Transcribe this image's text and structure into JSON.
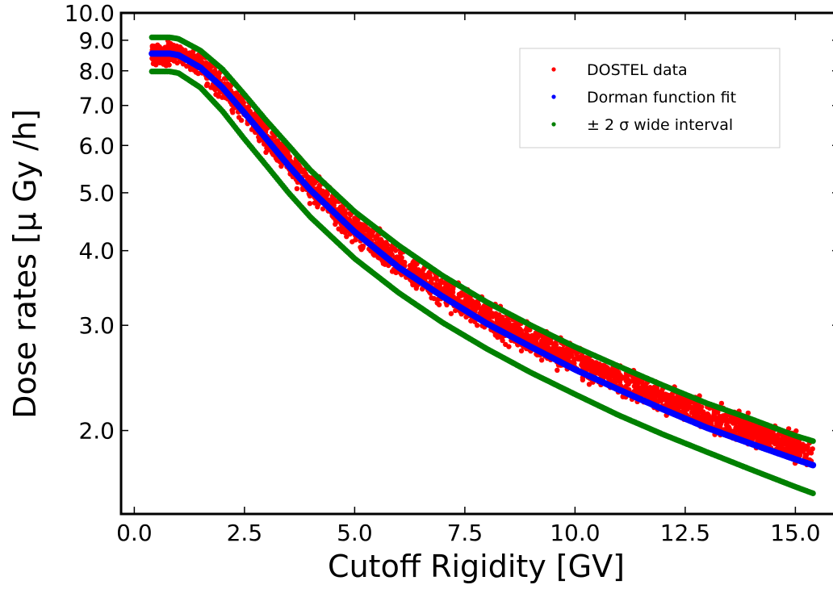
{
  "chart_data": {
    "type": "scatter",
    "xlabel": "Cutoff Rigidity [GV]",
    "ylabel": "Dose rates [μ Gy /h]",
    "xlim": [
      -0.3,
      16.0
    ],
    "ylim": [
      1.45,
      10.0
    ],
    "yscale": "log",
    "grid": false,
    "legend_position": "top-right",
    "x_ticks": [
      0.0,
      2.5,
      5.0,
      7.5,
      10.0,
      12.5,
      15.0
    ],
    "x_tick_labels": [
      "0.0",
      "2.5",
      "5.0",
      "7.5",
      "10.0",
      "12.5",
      "15.0"
    ],
    "y_ticks": [
      2.0,
      3.0,
      4.0,
      5.0,
      6.0,
      7.0,
      8.0,
      9.0,
      10.0
    ],
    "y_tick_labels": [
      "2.0",
      "3.0",
      "4.0",
      "5.0",
      "6.0",
      "7.0",
      "8.0",
      "9.0",
      "10.0"
    ],
    "series": [
      {
        "name": "DOSTEL data",
        "color": "#ff0000",
        "kind": "scatter-band",
        "x": [
          0.4,
          1.0,
          1.5,
          2.0,
          2.5,
          3.0,
          4.0,
          5.0,
          6.0,
          7.0,
          8.0,
          9.0,
          10.0,
          11.0,
          12.0,
          13.0,
          14.0,
          15.0,
          15.4
        ],
        "y_low": [
          8.0,
          8.0,
          7.6,
          7.0,
          6.4,
          5.7,
          4.7,
          4.0,
          3.5,
          3.15,
          2.85,
          2.62,
          2.42,
          2.25,
          2.1,
          1.97,
          1.85,
          1.72,
          1.68
        ],
        "y_high": [
          9.1,
          9.1,
          8.7,
          8.1,
          7.4,
          6.7,
          5.6,
          4.75,
          4.15,
          3.7,
          3.35,
          3.07,
          2.83,
          2.62,
          2.45,
          2.3,
          2.16,
          2.03,
          1.98
        ]
      },
      {
        "name": "Dorman function fit",
        "color": "#0000ff",
        "kind": "line",
        "x": [
          0.4,
          0.8,
          1.0,
          1.5,
          2.0,
          2.5,
          3.0,
          3.5,
          4.0,
          5.0,
          6.0,
          7.0,
          8.0,
          9.0,
          10.0,
          11.0,
          12.0,
          13.0,
          14.0,
          15.0,
          15.4
        ],
        "y": [
          8.55,
          8.55,
          8.5,
          8.1,
          7.5,
          6.8,
          6.15,
          5.55,
          5.05,
          4.3,
          3.75,
          3.35,
          3.02,
          2.76,
          2.53,
          2.34,
          2.17,
          2.02,
          1.9,
          1.79,
          1.75
        ]
      },
      {
        "name": "± 2 σ wide interval",
        "color": "#008000",
        "kind": "band-edges",
        "x": [
          0.4,
          0.8,
          1.0,
          1.5,
          2.0,
          2.5,
          3.0,
          3.5,
          4.0,
          5.0,
          6.0,
          7.0,
          8.0,
          9.0,
          10.0,
          11.0,
          12.0,
          13.0,
          14.0,
          15.0,
          15.4
        ],
        "y_upper": [
          9.1,
          9.1,
          9.05,
          8.65,
          8.05,
          7.3,
          6.6,
          6.0,
          5.45,
          4.65,
          4.08,
          3.63,
          3.28,
          3.0,
          2.76,
          2.56,
          2.38,
          2.22,
          2.09,
          1.96,
          1.92
        ],
        "y_lower": [
          7.98,
          7.98,
          7.93,
          7.5,
          6.85,
          6.15,
          5.55,
          5.0,
          4.55,
          3.88,
          3.4,
          3.03,
          2.74,
          2.5,
          2.3,
          2.12,
          1.97,
          1.84,
          1.72,
          1.61,
          1.57
        ]
      }
    ],
    "legend": [
      {
        "label": "DOSTEL data",
        "color": "#ff0000"
      },
      {
        "label": "Dorman function fit",
        "color": "#0000ff"
      },
      {
        "label": "± 2 σ wide interval",
        "color": "#008000"
      }
    ]
  }
}
